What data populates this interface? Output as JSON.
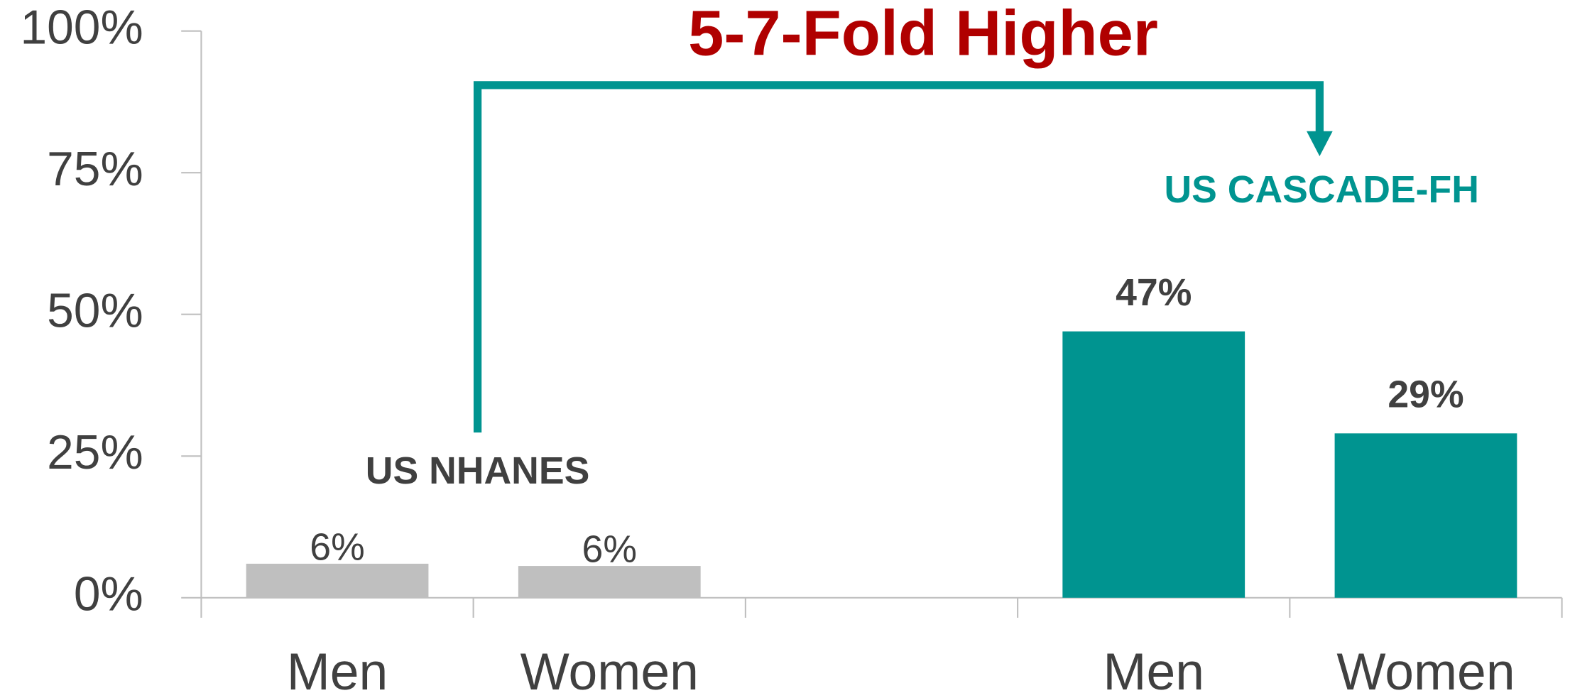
{
  "chart_data": {
    "type": "bar",
    "title": "5-7-Fold Higher",
    "annotations": [
      "US NHANES",
      "US CASCADE-FH"
    ],
    "categories": [
      "Men",
      "Women",
      null,
      "Men",
      "Women"
    ],
    "values": [
      6,
      5.6,
      null,
      47,
      29
    ],
    "value_labels": [
      "6%",
      "6%",
      null,
      "47%",
      "29%"
    ],
    "colors": [
      "#bfbfbf",
      "#bfbfbf",
      null,
      "#009490",
      "#009490"
    ],
    "ylim": [
      0,
      100
    ],
    "yticks": [
      {
        "value": 0,
        "label": "0%"
      },
      {
        "value": 25,
        "label": "25%"
      },
      {
        "value": 50,
        "label": "50%"
      },
      {
        "value": 75,
        "label": "75%"
      },
      {
        "value": 100,
        "label": "100%"
      }
    ],
    "grid": false
  }
}
